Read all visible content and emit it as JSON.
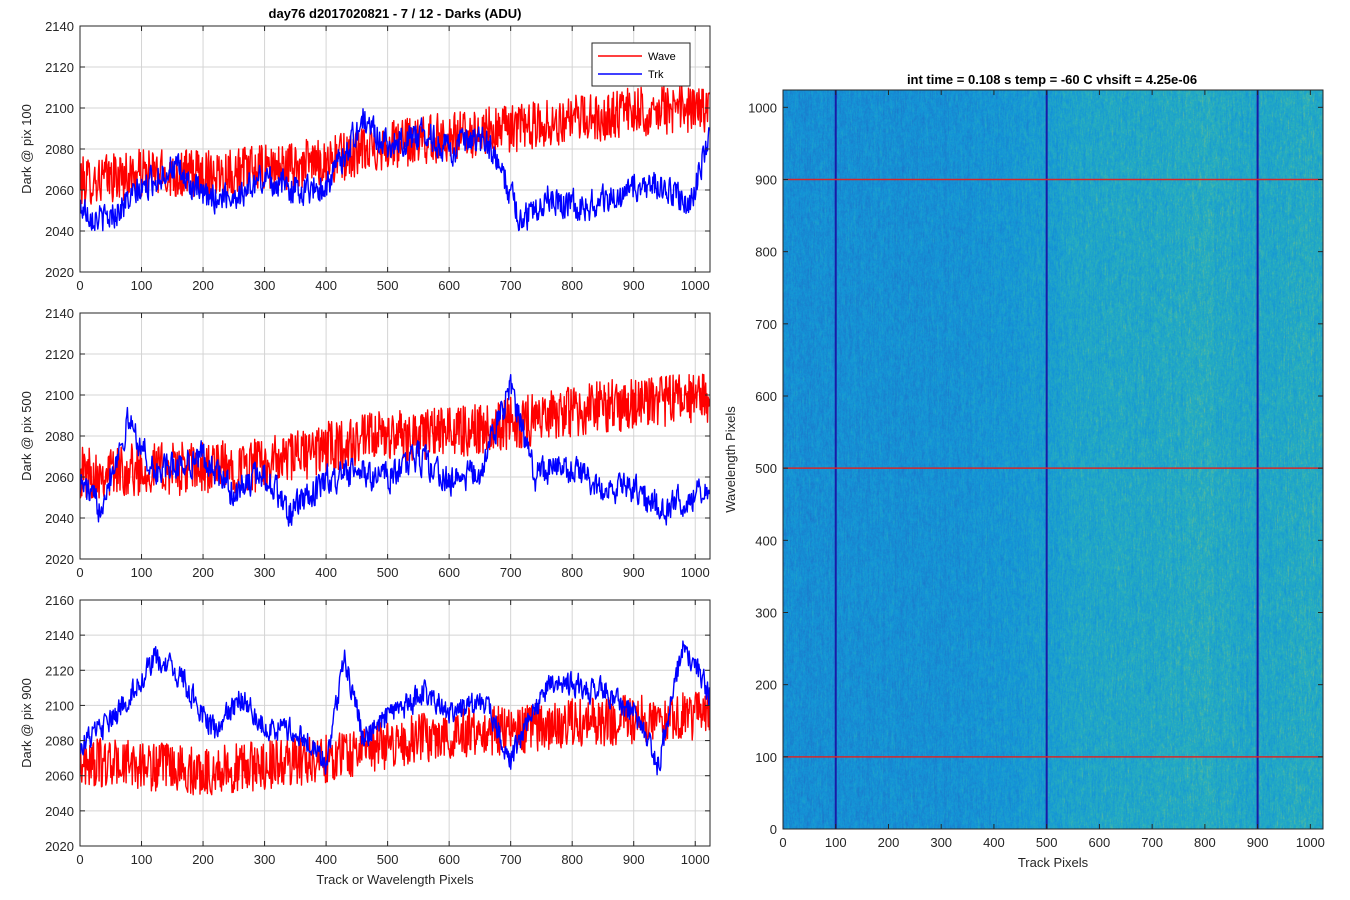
{
  "figure": {
    "left_title": "day76 d2017020821 - 7 / 12 - Darks (ADU)",
    "right_title": "int time = 0.108 s   temp = -60 C   vhsift = 4.25e-06"
  },
  "colors": {
    "wave": "#ff0000",
    "trk": "#0000ff",
    "grid": "#d4d4d4",
    "axis": "#262626",
    "heatmap_low": "#1f78c8",
    "heatmap_mid": "#2aa6c4",
    "heatmap_high": "#9cc85c",
    "marker_lines_h": "#d62728",
    "marker_lines_v": "#1a1aa6"
  },
  "chart_data": [
    {
      "type": "line",
      "title": "day76 d2017020821 - 7 / 12 - Darks (ADU)",
      "xlabel": "",
      "ylabel": "Dark @ pix 100",
      "xlim": [
        0,
        1024
      ],
      "ylim": [
        2020,
        2140
      ],
      "xticks": [
        0,
        100,
        200,
        300,
        400,
        500,
        600,
        700,
        800,
        900,
        1000
      ],
      "yticks": [
        2020,
        2040,
        2060,
        2080,
        2100,
        2120,
        2140
      ],
      "grid": true,
      "legend": {
        "location": "top-right",
        "entries": [
          "Wave",
          "Trk"
        ]
      },
      "series": [
        {
          "name": "Wave",
          "color": "#ff0000",
          "noise": 12,
          "trend_x": [
            0,
            100,
            200,
            300,
            400,
            500,
            600,
            700,
            800,
            900,
            1024
          ],
          "trend_y": [
            2064,
            2068,
            2068,
            2070,
            2074,
            2082,
            2086,
            2090,
            2094,
            2098,
            2100
          ]
        },
        {
          "name": "Trk",
          "color": "#0000ff",
          "noise": 5,
          "trend_x": [
            0,
            40,
            100,
            150,
            200,
            260,
            300,
            350,
            400,
            460,
            500,
            560,
            600,
            660,
            700,
            720,
            760,
            800,
            850,
            900,
            950,
            990,
            1024
          ],
          "trend_y": [
            2052,
            2045,
            2060,
            2072,
            2056,
            2058,
            2066,
            2060,
            2062,
            2094,
            2082,
            2088,
            2080,
            2084,
            2058,
            2044,
            2058,
            2052,
            2054,
            2060,
            2062,
            2050,
            2088
          ]
        }
      ]
    },
    {
      "type": "line",
      "xlabel": "",
      "ylabel": "Dark @ pix 500",
      "xlim": [
        0,
        1024
      ],
      "ylim": [
        2020,
        2140
      ],
      "xticks": [
        0,
        100,
        200,
        300,
        400,
        500,
        600,
        700,
        800,
        900,
        1000
      ],
      "yticks": [
        2020,
        2040,
        2060,
        2080,
        2100,
        2120,
        2140
      ],
      "grid": true,
      "series": [
        {
          "name": "Wave",
          "color": "#ff0000",
          "noise": 13,
          "trend_x": [
            0,
            100,
            200,
            300,
            400,
            500,
            600,
            700,
            800,
            900,
            1024
          ],
          "trend_y": [
            2062,
            2064,
            2064,
            2066,
            2074,
            2080,
            2082,
            2086,
            2092,
            2096,
            2098
          ]
        },
        {
          "name": "Trk",
          "color": "#0000ff",
          "noise": 5,
          "trend_x": [
            0,
            30,
            80,
            120,
            200,
            250,
            300,
            340,
            400,
            450,
            500,
            550,
            600,
            650,
            700,
            740,
            780,
            850,
            900,
            950,
            1024
          ],
          "trend_y": [
            2058,
            2045,
            2088,
            2062,
            2070,
            2052,
            2062,
            2042,
            2058,
            2062,
            2060,
            2070,
            2058,
            2062,
            2104,
            2060,
            2066,
            2056,
            2054,
            2044,
            2056
          ]
        }
      ]
    },
    {
      "type": "line",
      "xlabel": "Track or Wavelength Pixels",
      "ylabel": "Dark @ pix 900",
      "xlim": [
        0,
        1024
      ],
      "ylim": [
        2020,
        2160
      ],
      "xticks": [
        0,
        100,
        200,
        300,
        400,
        500,
        600,
        700,
        800,
        900,
        1000
      ],
      "yticks": [
        2020,
        2040,
        2060,
        2080,
        2100,
        2120,
        2140,
        2160
      ],
      "grid": true,
      "series": [
        {
          "name": "Wave",
          "color": "#ff0000",
          "noise": 14,
          "trend_x": [
            0,
            100,
            200,
            300,
            400,
            500,
            600,
            700,
            800,
            900,
            1024
          ],
          "trend_y": [
            2068,
            2066,
            2062,
            2066,
            2070,
            2078,
            2084,
            2086,
            2090,
            2092,
            2094
          ]
        },
        {
          "name": "Trk",
          "color": "#0000ff",
          "noise": 5,
          "trend_x": [
            0,
            50,
            120,
            160,
            220,
            260,
            300,
            360,
            400,
            430,
            460,
            500,
            560,
            600,
            660,
            700,
            760,
            800,
            850,
            900,
            940,
            980,
            1024
          ],
          "trend_y": [
            2078,
            2090,
            2126,
            2118,
            2084,
            2104,
            2088,
            2084,
            2066,
            2128,
            2082,
            2092,
            2108,
            2096,
            2102,
            2070,
            2112,
            2112,
            2108,
            2096,
            2066,
            2136,
            2106
          ]
        }
      ]
    },
    {
      "type": "heatmap",
      "title": "int time = 0.108 s   temp = -60 C   vhsift = 4.25e-06",
      "xlabel": "Track Pixels",
      "ylabel": "Wavelength Pixels",
      "xlim": [
        0,
        1024
      ],
      "ylim": [
        0,
        1024
      ],
      "xticks": [
        0,
        100,
        200,
        300,
        400,
        500,
        600,
        700,
        800,
        900,
        1000
      ],
      "yticks": [
        0,
        100,
        200,
        300,
        400,
        500,
        600,
        700,
        800,
        900,
        1000
      ],
      "colormap": "parula",
      "column_brightness_x": [
        0,
        300,
        420,
        500,
        560,
        700,
        800,
        880,
        1024
      ],
      "column_brightness_v": [
        0.28,
        0.3,
        0.36,
        0.42,
        0.5,
        0.52,
        0.56,
        0.5,
        0.55
      ],
      "horizontal_markers": [
        100,
        500,
        900
      ],
      "vertical_markers": [
        100,
        500,
        900
      ]
    }
  ]
}
